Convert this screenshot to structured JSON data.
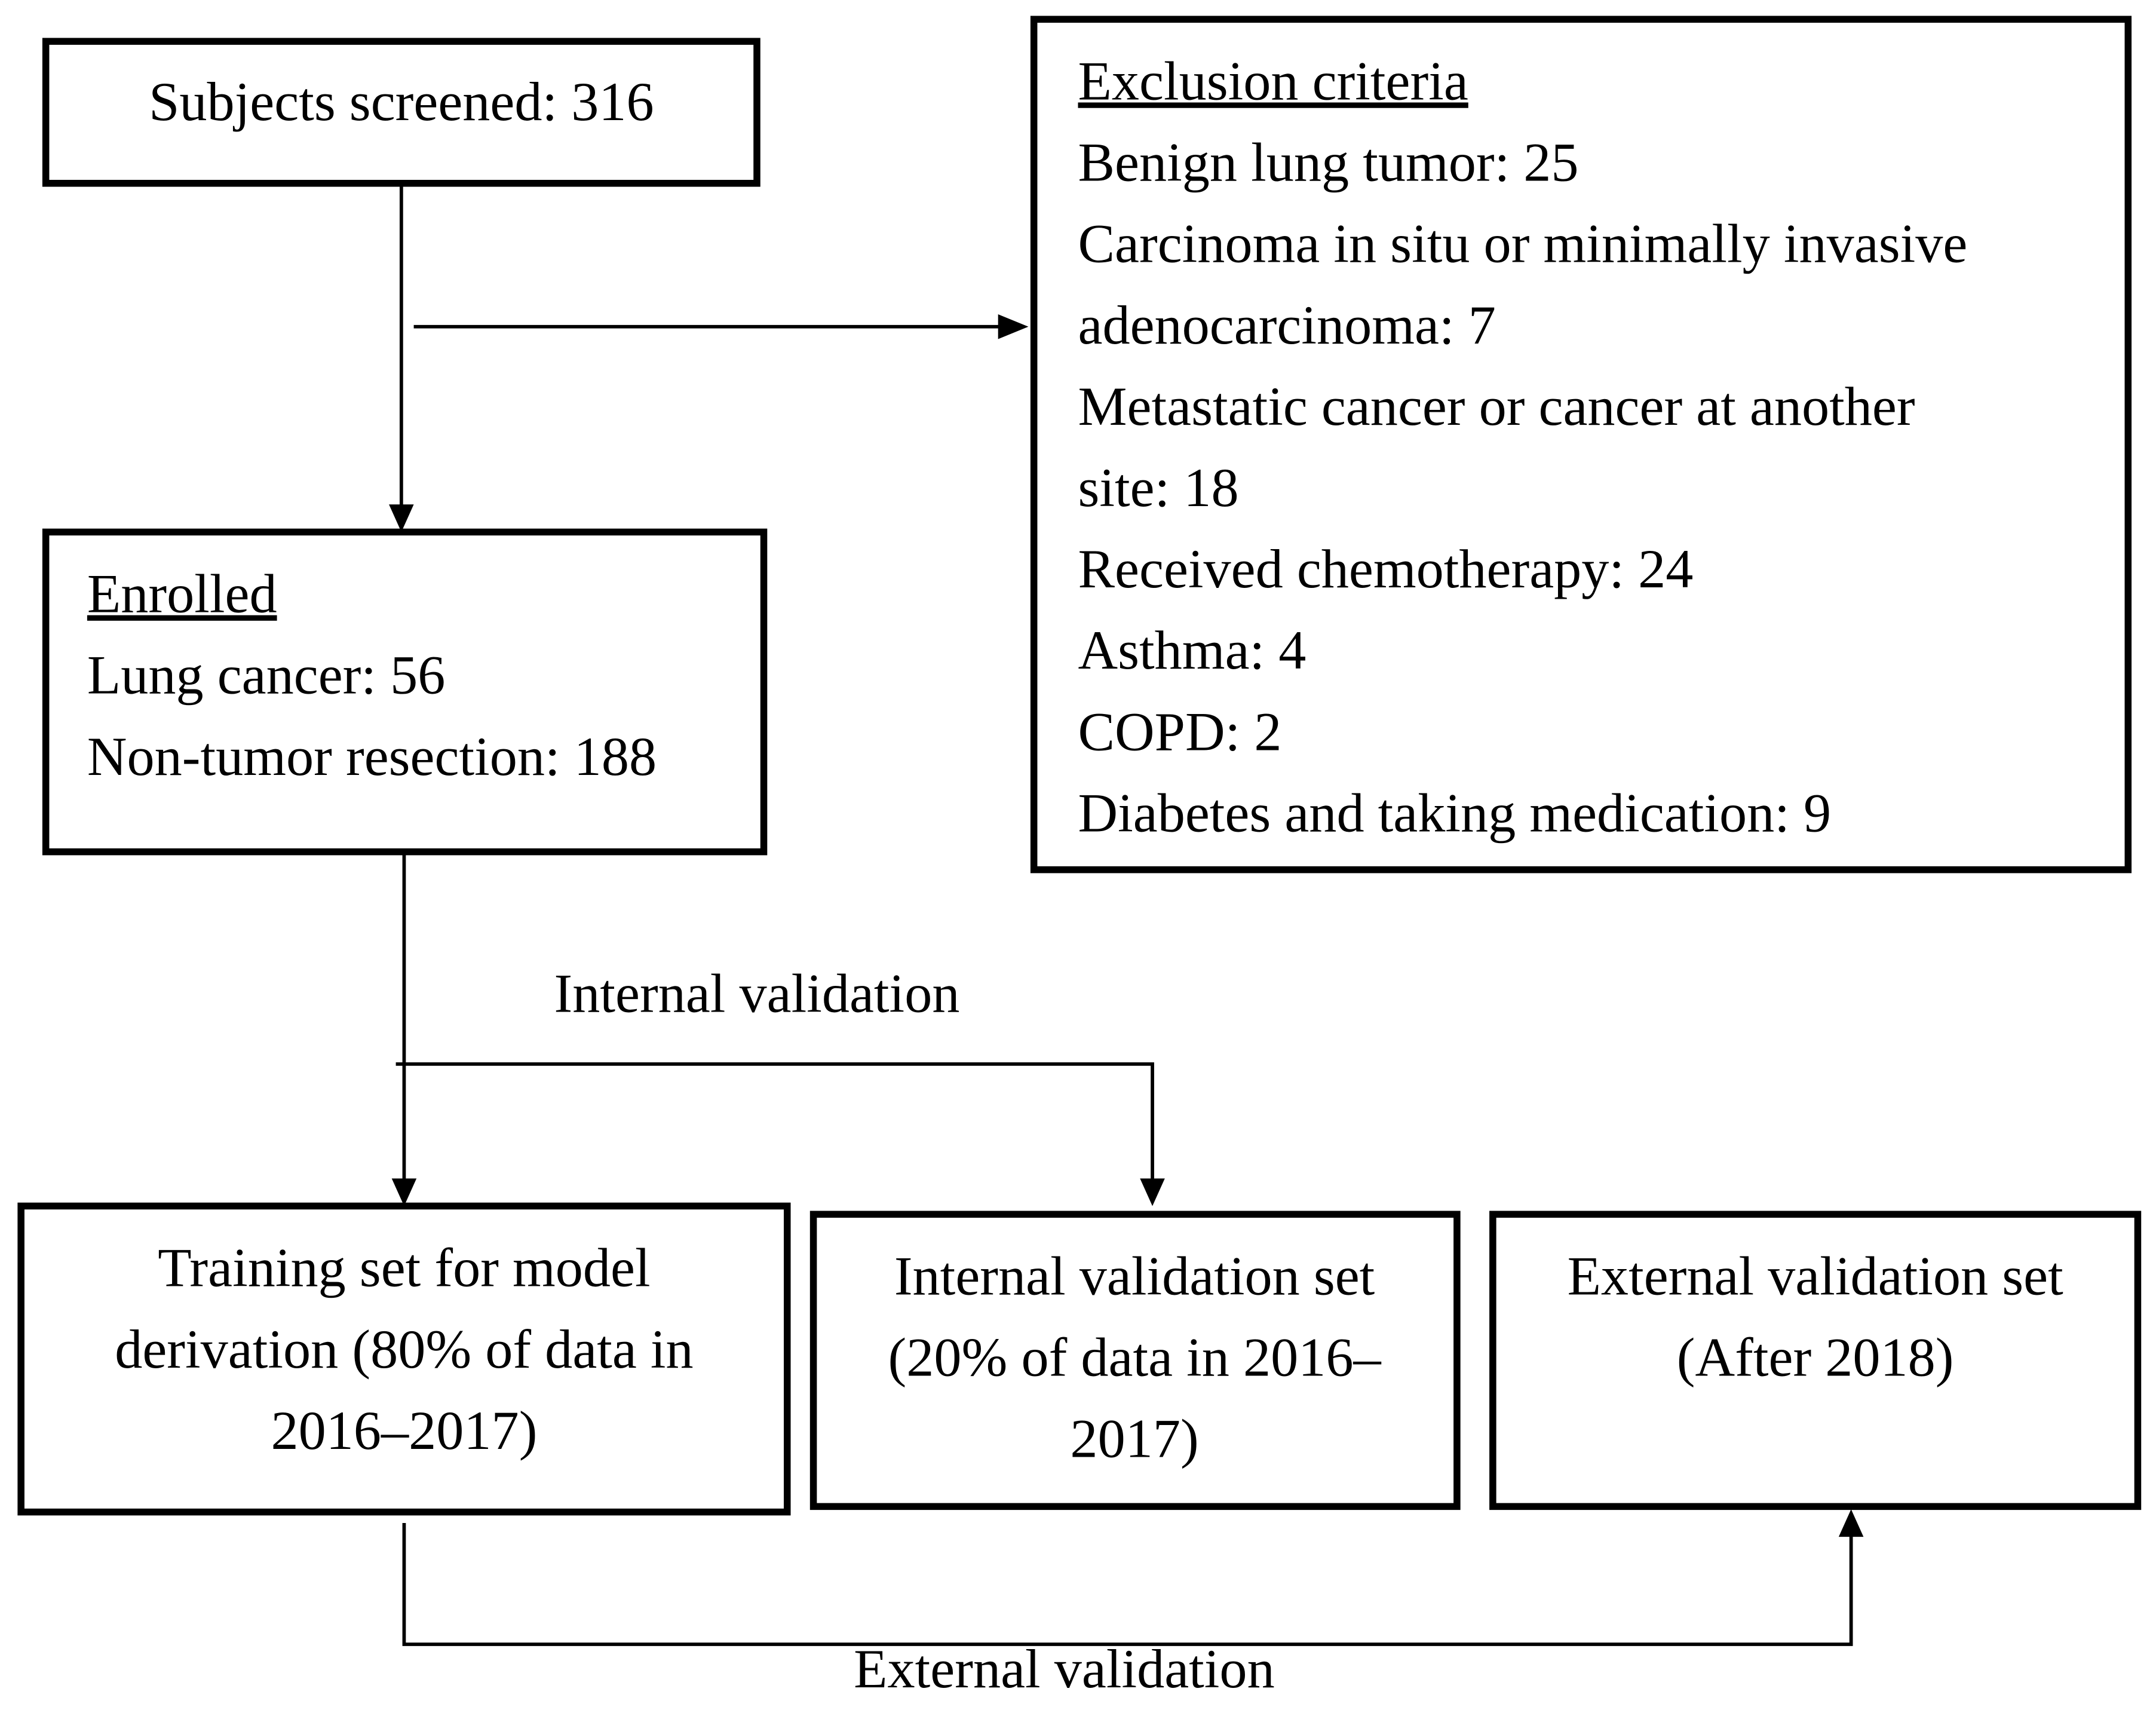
{
  "nodes": [
    {
      "label": "Subjects screened: 316"
    },
    {
      "title": "Exclusion criteria",
      "lines": [
        "Benign lung tumor: 25",
        "Carcinoma in situ or minimally invasive",
        "adenocarcinoma: 7",
        "Metastatic cancer or cancer at another",
        "site: 18",
        "Received chemotherapy: 24",
        "Asthma: 4",
        "COPD: 2",
        "Diabetes and taking medication: 9"
      ]
    },
    {
      "title": "Enrolled",
      "lines": [
        "Lung cancer: 56",
        "Non-tumor resection: 188"
      ]
    },
    {
      "lines": [
        "Training set for model",
        "derivation (80% of data in",
        "2016–2017)"
      ]
    },
    {
      "lines": [
        "Internal validation set",
        "(20% of data in 2016–",
        "2017)"
      ]
    },
    {
      "lines": [
        "External validation set",
        "(After 2018)"
      ]
    }
  ],
  "edges": [
    {
      "label": "Internal validation"
    },
    {
      "label": "External validation"
    }
  ]
}
